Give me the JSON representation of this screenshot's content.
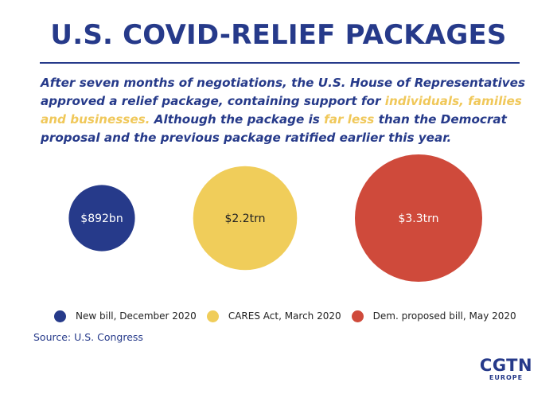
{
  "title": "U.S. COVID-RELIEF PACKAGES",
  "intro": {
    "part1": "After seven months of negotiations, the U.S. House of Representatives approved a relief package, containing support for ",
    "highlight1": "individuals, families and businesses.",
    "part2": "  Although the package is ",
    "highlight2": "far less",
    "part3": " than the Democrat proposal and the previous package ratified earlier this year."
  },
  "colors": {
    "navy": "#263a8a",
    "yellow": "#f0cd5a",
    "red": "#cf4a3b",
    "highlight_text": "#f0c85a"
  },
  "chart_data": {
    "type": "bubble",
    "unit": "USD",
    "categories": [
      "New bill, December 2020",
      "CARES Act, March 2020",
      "Dem. proposed bill, May 2020"
    ],
    "values": [
      892,
      2200,
      3300
    ],
    "value_labels": [
      "$892bn",
      "$2.2trn",
      "$3.3trn"
    ],
    "series_colors": [
      "#263a8a",
      "#f0cd5a",
      "#cf4a3b"
    ],
    "label_colors": [
      "#ffffff",
      "#222222",
      "#ffffff"
    ],
    "legend_position": "bottom"
  },
  "legend": [
    {
      "label": "New bill, December 2020",
      "color": "#263a8a"
    },
    {
      "label": "CARES Act, March 2020",
      "color": "#f0cd5a"
    },
    {
      "label": "Dem. proposed bill, May 2020",
      "color": "#cf4a3b"
    }
  ],
  "source": "Source: U.S. Congress",
  "logo": {
    "main": "CGTN",
    "sub": "EUROPE"
  }
}
